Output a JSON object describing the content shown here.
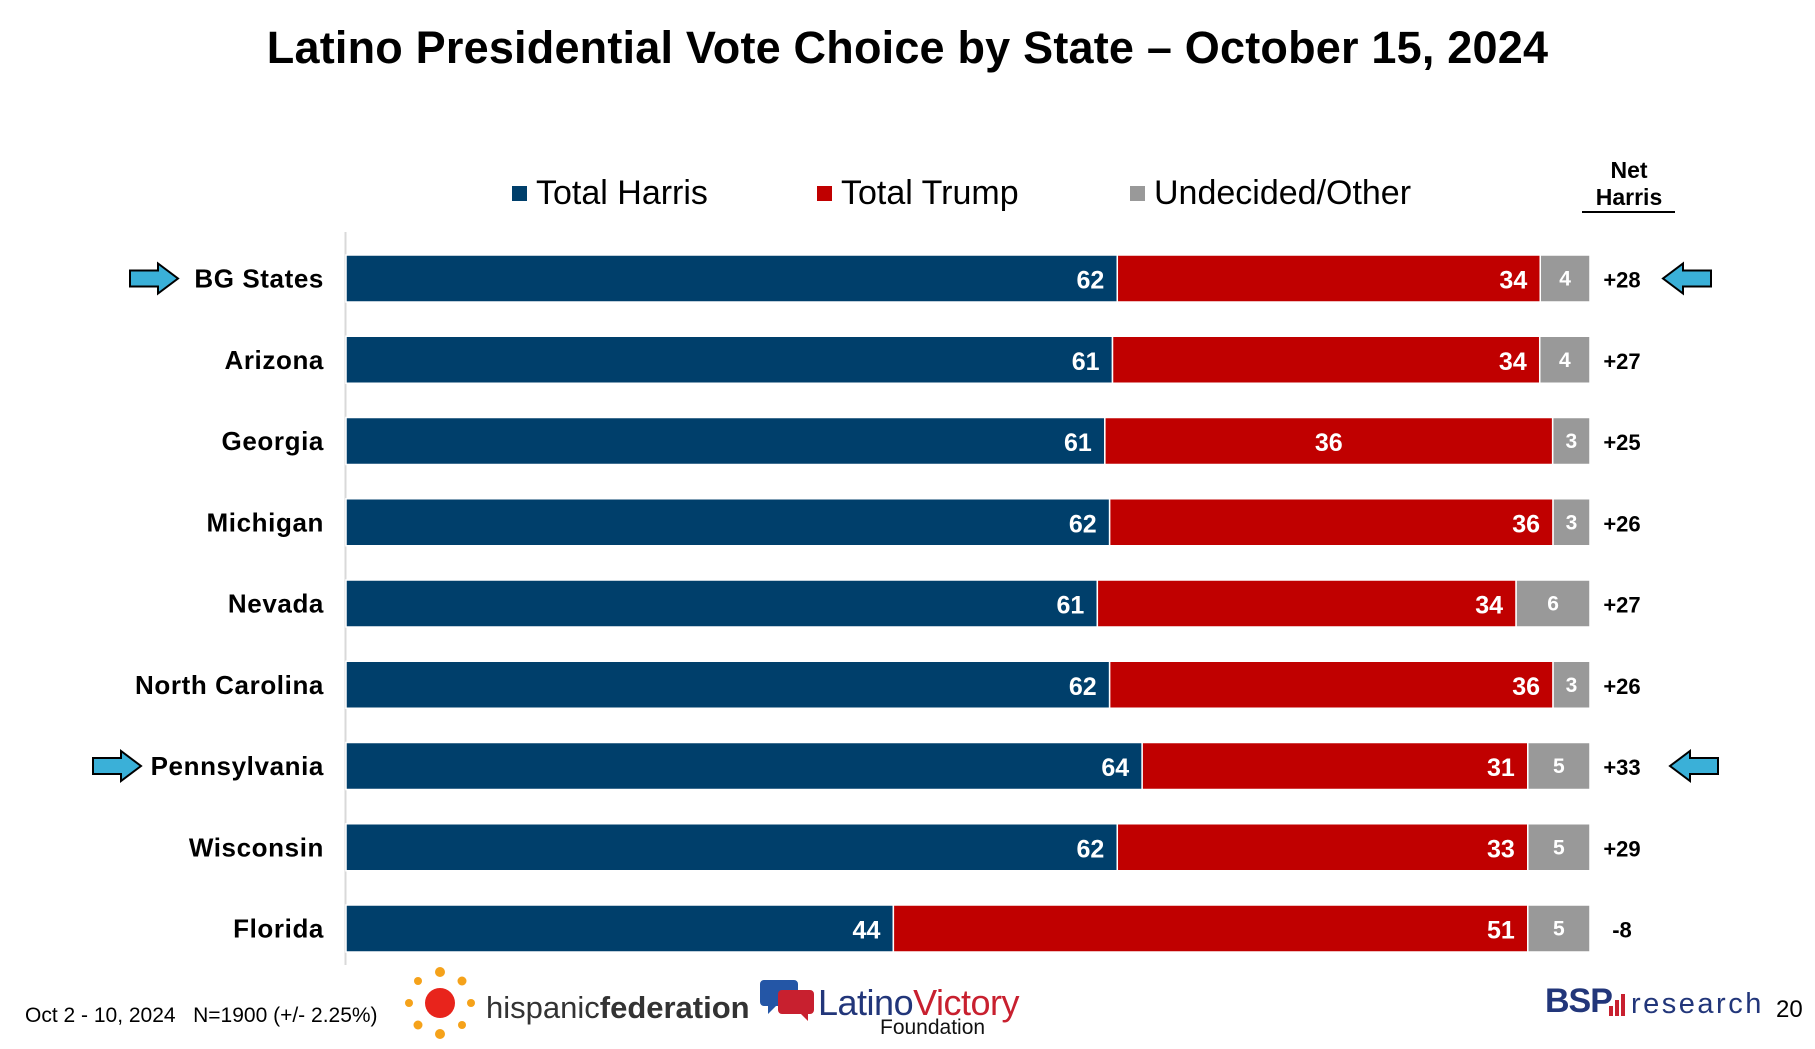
{
  "title": "Latino Presidential Vote Choice by State – October 15, 2024",
  "colors": {
    "harris": "#003f6b",
    "trump": "#c00000",
    "undecided": "#999999",
    "arrow": "#3ab0d8"
  },
  "chart_data": {
    "type": "bar",
    "orientation": "horizontal",
    "stacked": true,
    "title": "Latino Presidential Vote Choice by State – October 15, 2024",
    "legend_position": "top",
    "categories": [
      "BG States",
      "Arizona",
      "Georgia",
      "Michigan",
      "Nevada",
      "North Carolina",
      "Pennsylvania",
      "Wisconsin",
      "Florida"
    ],
    "series": [
      {
        "name": "Total Harris",
        "values": [
          62,
          61,
          61,
          62,
          61,
          62,
          64,
          62,
          44
        ],
        "color": "#003f6b"
      },
      {
        "name": "Total Trump",
        "values": [
          34,
          34,
          36,
          36,
          34,
          36,
          31,
          33,
          51
        ],
        "color": "#c00000"
      },
      {
        "name": "Undecided/Other",
        "values": [
          4,
          4,
          3,
          3,
          6,
          3,
          5,
          5,
          5
        ],
        "color": "#999999"
      }
    ],
    "net_column_header": [
      "Net",
      "Harris"
    ],
    "net_harris": [
      "+28",
      "+27",
      "+25",
      "+26",
      "+27",
      "+26",
      "+33",
      "+29",
      "-8"
    ],
    "highlighted_categories": [
      "BG States",
      "Pennsylvania"
    ],
    "grid": false
  },
  "footer": {
    "field_dates": "Oct 2 - 10, 2024",
    "sample": "N=1900 (+/- 2.25%)",
    "page_number": "20"
  },
  "logos": {
    "hispanic_federation": {
      "part1": "hispanic",
      "part2": "federation"
    },
    "latino_victory": {
      "part1": "Latino",
      "part2": "Victory",
      "sub": "Foundation"
    },
    "bsp": {
      "mark": "BSP",
      "word": "research"
    }
  }
}
